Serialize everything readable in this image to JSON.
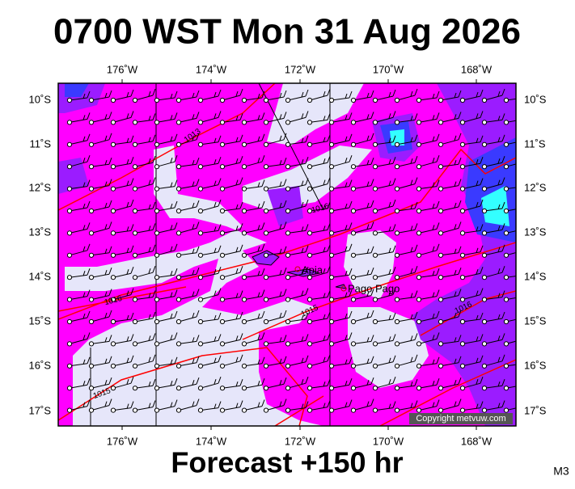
{
  "header": {
    "title": "0700 WST Mon 31 Aug 2026"
  },
  "map": {
    "lon_labels": [
      "176˚W",
      "174˚W",
      "172˚W",
      "170˚W",
      "168˚W"
    ],
    "lat_labels": [
      "10˚S",
      "11˚S",
      "12˚S",
      "13˚S",
      "14˚S",
      "15˚S",
      "16˚S",
      "17˚S"
    ],
    "contour_labels": [
      "1013",
      "1016",
      "1016",
      "1015",
      "1016",
      "1015"
    ],
    "places": [
      "Apia",
      "Pago Pago"
    ],
    "copyright": "Copyright metvuw.com"
  },
  "footer": {
    "forecast": "Forecast +150 hr",
    "model": "M3"
  }
}
